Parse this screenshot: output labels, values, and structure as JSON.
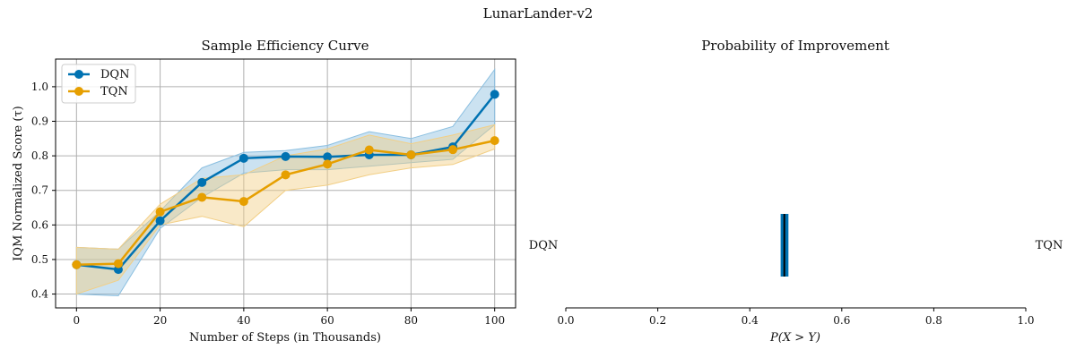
{
  "figure": {
    "suptitle": "LunarLander-v2"
  },
  "colors": {
    "dqn": "#0072b2",
    "tqn": "#e69f00",
    "dqn_band": "#8bbfe0",
    "tqn_band": "#f2cf86",
    "grid": "#b0b0b0",
    "axis": "#000000",
    "ci_bar": "#0072b2",
    "ci_median": "#000000"
  },
  "chart_data": [
    {
      "type": "line",
      "title": "Sample Efficiency Curve",
      "xlabel": "Number of Steps (in Thousands)",
      "ylabel": "IQM Normalized Score (τ)",
      "xlim": [
        -5,
        105
      ],
      "ylim": [
        0.36,
        1.08
      ],
      "xticks": [
        0,
        20,
        40,
        60,
        80,
        100
      ],
      "yticks": [
        0.4,
        0.5,
        0.6,
        0.7,
        0.8,
        0.9,
        1.0
      ],
      "ytick_labels": [
        "0.4",
        "0.5",
        "0.6",
        "0.7",
        "0.8",
        "0.9",
        "1.0"
      ],
      "grid": true,
      "legend": "top-left",
      "x": [
        0,
        10,
        20,
        30,
        40,
        50,
        60,
        70,
        80,
        90,
        100
      ],
      "series": [
        {
          "name": "DQN",
          "key": "dqn",
          "values": [
            0.485,
            0.471,
            0.612,
            0.723,
            0.793,
            0.798,
            0.797,
            0.803,
            0.803,
            0.826,
            0.978
          ],
          "lower": [
            0.4,
            0.395,
            0.59,
            0.68,
            0.75,
            0.76,
            0.76,
            0.77,
            0.78,
            0.79,
            0.89
          ],
          "upper": [
            0.535,
            0.53,
            0.64,
            0.765,
            0.81,
            0.815,
            0.83,
            0.87,
            0.85,
            0.885,
            1.05
          ]
        },
        {
          "name": "TQN",
          "key": "tqn",
          "values": [
            0.485,
            0.488,
            0.638,
            0.68,
            0.668,
            0.745,
            0.776,
            0.817,
            0.803,
            0.818,
            0.844
          ],
          "lower": [
            0.4,
            0.44,
            0.6,
            0.625,
            0.595,
            0.7,
            0.715,
            0.745,
            0.765,
            0.775,
            0.82
          ],
          "upper": [
            0.535,
            0.53,
            0.66,
            0.735,
            0.745,
            0.8,
            0.82,
            0.86,
            0.835,
            0.86,
            0.89
          ]
        }
      ]
    },
    {
      "type": "interval",
      "title": "Probability of Improvement",
      "xlabel": "P(X > Y)",
      "xlim": [
        0.0,
        1.0
      ],
      "xticks": [
        0.0,
        0.2,
        0.4,
        0.6,
        0.8,
        1.0
      ],
      "xtick_labels": [
        "0.0",
        "0.2",
        "0.4",
        "0.6",
        "0.8",
        "1.0"
      ],
      "left_label": "DQN",
      "right_label": "TQN",
      "estimate": 0.475,
      "ci": [
        0.467,
        0.484
      ]
    }
  ]
}
